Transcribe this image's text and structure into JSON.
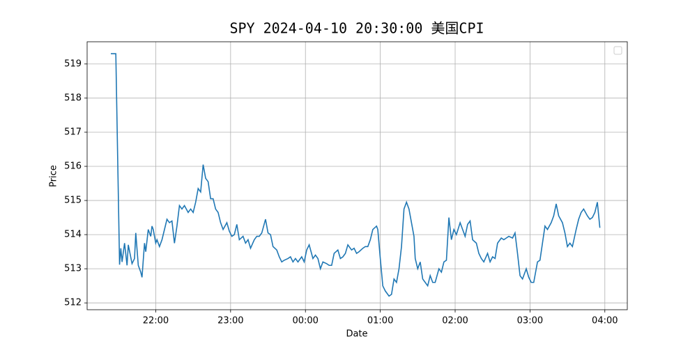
{
  "chart_data": {
    "type": "line",
    "title": "SPY 2024-04-10 20:30:00 美国CPI",
    "x_label": "Date",
    "y_label": "Price",
    "x": [
      "21:24",
      "21:28",
      "21:31",
      "21:32",
      "21:33",
      "21:35",
      "21:37",
      "21:38",
      "21:41",
      "21:43",
      "21:44",
      "21:46",
      "21:48",
      "21:49",
      "21:51",
      "21:52",
      "21:54",
      "21:56",
      "21:57",
      "21:58",
      "22:00",
      "22:01",
      "22:03",
      "22:05",
      "22:07",
      "22:09",
      "22:11",
      "22:13",
      "22:15",
      "22:17",
      "22:19",
      "22:21",
      "22:23",
      "22:26",
      "22:28",
      "22:30",
      "22:32",
      "22:34",
      "22:36",
      "22:38",
      "22:40",
      "22:42",
      "22:44",
      "22:46",
      "22:48",
      "22:50",
      "22:52",
      "22:54",
      "22:57",
      "22:59",
      "23:01",
      "23:03",
      "23:05",
      "23:07",
      "23:10",
      "23:12",
      "23:14",
      "23:16",
      "23:19",
      "23:21",
      "23:23",
      "23:25",
      "23:28",
      "23:30",
      "23:32",
      "23:34",
      "23:37",
      "23:39",
      "23:41",
      "23:43",
      "23:46",
      "23:48",
      "23:50",
      "23:52",
      "23:54",
      "23:57",
      "23:59",
      "00:01",
      "00:03",
      "00:06",
      "00:08",
      "00:10",
      "00:12",
      "00:14",
      "00:17",
      "00:19",
      "00:21",
      "00:23",
      "00:26",
      "00:28",
      "00:30",
      "00:32",
      "00:34",
      "00:37",
      "00:39",
      "00:41",
      "00:43",
      "00:46",
      "00:48",
      "00:50",
      "00:52",
      "00:54",
      "00:57",
      "00:58",
      "01:00",
      "01:02",
      "01:04",
      "01:07",
      "01:09",
      "01:11",
      "01:13",
      "01:15",
      "01:17",
      "01:19",
      "01:21",
      "01:23",
      "01:25",
      "01:27",
      "01:28",
      "01:30",
      "01:32",
      "01:34",
      "01:36",
      "01:38",
      "01:40",
      "01:42",
      "01:44",
      "01:47",
      "01:49",
      "01:51",
      "01:53",
      "01:55",
      "01:57",
      "01:59",
      "02:01",
      "02:04",
      "02:06",
      "02:08",
      "02:10",
      "02:12",
      "02:14",
      "02:17",
      "02:19",
      "02:21",
      "02:23",
      "02:26",
      "02:28",
      "02:30",
      "02:32",
      "02:34",
      "02:37",
      "02:39",
      "02:41",
      "02:43",
      "02:46",
      "02:48",
      "02:50",
      "02:52",
      "02:54",
      "02:57",
      "02:59",
      "03:01",
      "03:03",
      "03:06",
      "03:08",
      "03:10",
      "03:12",
      "03:14",
      "03:17",
      "03:19",
      "03:21",
      "03:23",
      "03:26",
      "03:28",
      "03:30",
      "03:32",
      "03:34",
      "03:37",
      "03:39",
      "03:41",
      "03:43",
      "03:46",
      "03:48",
      "03:50",
      "03:52",
      "03:54",
      "03:56"
    ],
    "values": [
      519.3,
      519.3,
      513.12,
      513.6,
      513.2,
      513.75,
      513.1,
      513.7,
      513.15,
      513.3,
      514.05,
      513.1,
      512.9,
      512.75,
      513.75,
      513.5,
      514.15,
      513.95,
      514.25,
      514.15,
      513.75,
      513.85,
      513.65,
      513.85,
      514.15,
      514.45,
      514.35,
      514.4,
      513.75,
      514.25,
      514.85,
      514.75,
      514.85,
      514.65,
      514.75,
      514.65,
      514.95,
      515.35,
      515.25,
      516.05,
      515.65,
      515.55,
      515.05,
      515.05,
      514.75,
      514.65,
      514.35,
      514.15,
      514.35,
      514.1,
      513.95,
      514.0,
      514.3,
      513.85,
      513.95,
      513.75,
      513.85,
      513.6,
      513.85,
      513.95,
      513.95,
      514.05,
      514.45,
      514.05,
      514.0,
      513.65,
      513.55,
      513.35,
      513.2,
      513.25,
      513.3,
      513.35,
      513.2,
      513.3,
      513.2,
      513.35,
      513.2,
      513.55,
      513.7,
      513.3,
      513.4,
      513.3,
      513.0,
      513.2,
      513.15,
      513.1,
      513.1,
      513.45,
      513.55,
      513.3,
      513.35,
      513.45,
      513.7,
      513.55,
      513.6,
      513.45,
      513.5,
      513.6,
      513.65,
      513.65,
      513.85,
      514.15,
      514.25,
      514.15,
      513.3,
      512.5,
      512.35,
      512.2,
      512.25,
      512.7,
      512.6,
      513.0,
      513.65,
      514.75,
      514.95,
      514.75,
      514.35,
      513.95,
      513.3,
      513.0,
      513.2,
      512.7,
      512.6,
      512.5,
      512.8,
      512.6,
      512.6,
      513.0,
      512.9,
      513.2,
      513.25,
      514.5,
      513.85,
      514.15,
      514.0,
      514.35,
      514.15,
      513.95,
      514.3,
      514.4,
      513.85,
      513.75,
      513.45,
      513.3,
      513.2,
      513.45,
      513.2,
      513.35,
      513.3,
      513.75,
      513.9,
      513.85,
      513.9,
      513.95,
      513.9,
      514.05,
      513.45,
      512.8,
      512.7,
      513.0,
      512.75,
      512.6,
      512.6,
      513.2,
      513.25,
      513.75,
      514.25,
      514.15,
      514.35,
      514.55,
      514.9,
      514.55,
      514.35,
      514.05,
      513.65,
      513.75,
      513.65,
      514.15,
      514.45,
      514.65,
      514.75,
      514.55,
      514.45,
      514.5,
      514.65,
      514.95,
      514.2
    ],
    "color": "#1f77b4",
    "xlim": [
      "21:05",
      "04:18"
    ],
    "xticks": [
      "22:00",
      "23:00",
      "00:00",
      "01:00",
      "02:00",
      "03:00",
      "04:00"
    ],
    "ylim": [
      511.8,
      519.65
    ],
    "yticks": [
      512,
      513,
      514,
      515,
      516,
      517,
      518,
      519
    ],
    "grid": true,
    "legend": "upper right"
  }
}
